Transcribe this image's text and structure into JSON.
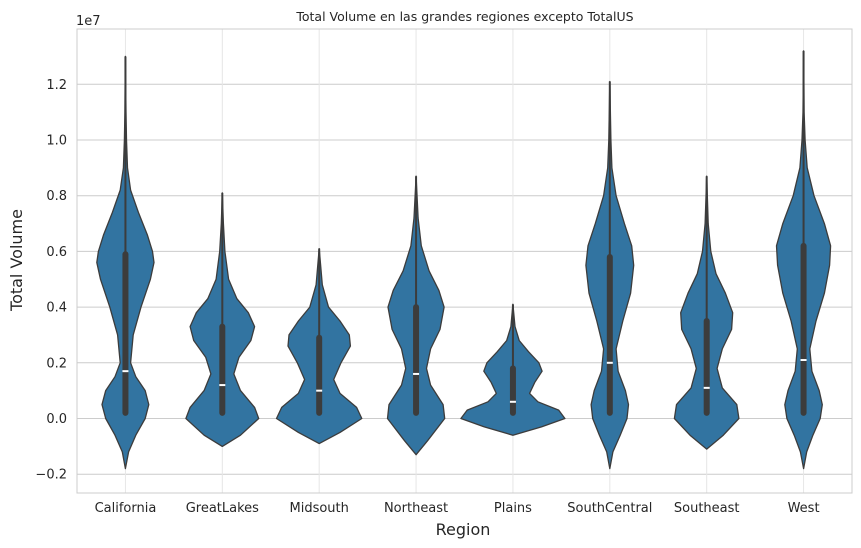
{
  "chart_data": {
    "type": "violin",
    "title": "Total Volume en las grandes regiones excepto TotalUS",
    "xlabel": "Region",
    "ylabel": "Total Volume",
    "y_scale_label": "1e7",
    "ylim": [
      -0.25,
      1.39
    ],
    "y_ticks": [
      -0.2,
      0.0,
      0.2,
      0.4,
      0.6,
      0.8,
      1.0,
      1.2
    ],
    "y_tick_labels": [
      "−0.2",
      "0.0",
      "0.2",
      "0.4",
      "0.6",
      "0.8",
      "1.0",
      "1.2"
    ],
    "grid": true,
    "color": "#3274a1",
    "categories": [
      "California",
      "GreatLakes",
      "Midsouth",
      "Northeast",
      "Plains",
      "SouthCentral",
      "Southeast",
      "West"
    ],
    "violins": [
      {
        "category": "California",
        "min": 0.02,
        "q1": 0.02,
        "median": 0.17,
        "q3": 0.59,
        "max": 1.3,
        "density": [
          [
            -0.18,
            0.0
          ],
          [
            -0.12,
            0.06
          ],
          [
            -0.06,
            0.2
          ],
          [
            0.0,
            0.38
          ],
          [
            0.05,
            0.45
          ],
          [
            0.1,
            0.38
          ],
          [
            0.15,
            0.2
          ],
          [
            0.2,
            0.1
          ],
          [
            0.3,
            0.15
          ],
          [
            0.4,
            0.3
          ],
          [
            0.5,
            0.48
          ],
          [
            0.56,
            0.55
          ],
          [
            0.6,
            0.52
          ],
          [
            0.66,
            0.42
          ],
          [
            0.74,
            0.25
          ],
          [
            0.82,
            0.1
          ],
          [
            0.9,
            0.04
          ],
          [
            1.0,
            0.02
          ],
          [
            1.1,
            0.01
          ],
          [
            1.3,
            0.0
          ]
        ]
      },
      {
        "category": "GreatLakes",
        "min": 0.02,
        "q1": 0.02,
        "median": 0.12,
        "q3": 0.33,
        "max": 0.81,
        "density": [
          [
            -0.1,
            0.0
          ],
          [
            -0.06,
            0.35
          ],
          [
            0.0,
            0.7
          ],
          [
            0.04,
            0.62
          ],
          [
            0.1,
            0.35
          ],
          [
            0.16,
            0.22
          ],
          [
            0.22,
            0.32
          ],
          [
            0.28,
            0.55
          ],
          [
            0.33,
            0.62
          ],
          [
            0.38,
            0.5
          ],
          [
            0.43,
            0.28
          ],
          [
            0.5,
            0.12
          ],
          [
            0.6,
            0.05
          ],
          [
            0.7,
            0.02
          ],
          [
            0.81,
            0.0
          ]
        ]
      },
      {
        "category": "Midsouth",
        "min": 0.02,
        "q1": 0.02,
        "median": 0.1,
        "q3": 0.29,
        "max": 0.61,
        "density": [
          [
            -0.09,
            0.0
          ],
          [
            -0.05,
            0.4
          ],
          [
            0.0,
            0.82
          ],
          [
            0.04,
            0.72
          ],
          [
            0.09,
            0.4
          ],
          [
            0.14,
            0.28
          ],
          [
            0.2,
            0.42
          ],
          [
            0.26,
            0.6
          ],
          [
            0.3,
            0.58
          ],
          [
            0.35,
            0.4
          ],
          [
            0.4,
            0.18
          ],
          [
            0.48,
            0.06
          ],
          [
            0.61,
            0.0
          ]
        ]
      },
      {
        "category": "Northeast",
        "min": 0.02,
        "q1": 0.02,
        "median": 0.16,
        "q3": 0.4,
        "max": 0.87,
        "density": [
          [
            -0.13,
            0.0
          ],
          [
            -0.08,
            0.22
          ],
          [
            0.0,
            0.55
          ],
          [
            0.05,
            0.52
          ],
          [
            0.12,
            0.28
          ],
          [
            0.18,
            0.2
          ],
          [
            0.25,
            0.28
          ],
          [
            0.32,
            0.46
          ],
          [
            0.4,
            0.54
          ],
          [
            0.46,
            0.44
          ],
          [
            0.53,
            0.25
          ],
          [
            0.62,
            0.1
          ],
          [
            0.72,
            0.04
          ],
          [
            0.87,
            0.0
          ]
        ]
      },
      {
        "category": "Plains",
        "min": 0.02,
        "q1": 0.02,
        "median": 0.06,
        "q3": 0.18,
        "max": 0.41,
        "density": [
          [
            -0.06,
            0.0
          ],
          [
            -0.03,
            0.55
          ],
          [
            0.0,
            1.0
          ],
          [
            0.03,
            0.88
          ],
          [
            0.06,
            0.48
          ],
          [
            0.09,
            0.32
          ],
          [
            0.13,
            0.42
          ],
          [
            0.17,
            0.56
          ],
          [
            0.2,
            0.5
          ],
          [
            0.24,
            0.3
          ],
          [
            0.28,
            0.12
          ],
          [
            0.33,
            0.04
          ],
          [
            0.41,
            0.0
          ]
        ]
      },
      {
        "category": "SouthCentral",
        "min": 0.02,
        "q1": 0.02,
        "median": 0.2,
        "q3": 0.58,
        "max": 1.21,
        "density": [
          [
            -0.18,
            0.0
          ],
          [
            -0.12,
            0.06
          ],
          [
            -0.06,
            0.2
          ],
          [
            0.0,
            0.33
          ],
          [
            0.05,
            0.36
          ],
          [
            0.1,
            0.3
          ],
          [
            0.17,
            0.16
          ],
          [
            0.25,
            0.12
          ],
          [
            0.35,
            0.25
          ],
          [
            0.45,
            0.4
          ],
          [
            0.55,
            0.46
          ],
          [
            0.62,
            0.42
          ],
          [
            0.7,
            0.28
          ],
          [
            0.8,
            0.12
          ],
          [
            0.9,
            0.04
          ],
          [
            1.0,
            0.02
          ],
          [
            1.21,
            0.0
          ]
        ]
      },
      {
        "category": "Southeast",
        "min": 0.02,
        "q1": 0.02,
        "median": 0.11,
        "q3": 0.35,
        "max": 0.87,
        "density": [
          [
            -0.11,
            0.0
          ],
          [
            -0.06,
            0.32
          ],
          [
            0.0,
            0.62
          ],
          [
            0.05,
            0.58
          ],
          [
            0.11,
            0.3
          ],
          [
            0.18,
            0.2
          ],
          [
            0.25,
            0.3
          ],
          [
            0.32,
            0.48
          ],
          [
            0.38,
            0.5
          ],
          [
            0.45,
            0.36
          ],
          [
            0.52,
            0.18
          ],
          [
            0.6,
            0.08
          ],
          [
            0.7,
            0.03
          ],
          [
            0.87,
            0.0
          ]
        ]
      },
      {
        "category": "West",
        "min": 0.02,
        "q1": 0.02,
        "median": 0.21,
        "q3": 0.62,
        "max": 1.32,
        "density": [
          [
            -0.18,
            0.0
          ],
          [
            -0.12,
            0.06
          ],
          [
            -0.06,
            0.18
          ],
          [
            0.0,
            0.32
          ],
          [
            0.05,
            0.36
          ],
          [
            0.1,
            0.3
          ],
          [
            0.17,
            0.16
          ],
          [
            0.25,
            0.12
          ],
          [
            0.35,
            0.24
          ],
          [
            0.45,
            0.4
          ],
          [
            0.55,
            0.5
          ],
          [
            0.62,
            0.52
          ],
          [
            0.7,
            0.4
          ],
          [
            0.8,
            0.2
          ],
          [
            0.9,
            0.07
          ],
          [
            1.0,
            0.03
          ],
          [
            1.1,
            0.01
          ],
          [
            1.32,
            0.0
          ]
        ]
      }
    ]
  }
}
